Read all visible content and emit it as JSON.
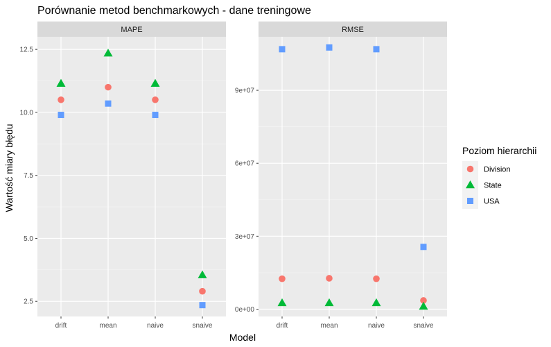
{
  "chart_data": {
    "type": "scatter",
    "title": "Porównanie metod benchmarkowych - dane treningowe",
    "xlabel": "Model",
    "ylabel": "Wartość miary błędu",
    "grid": true,
    "categories": [
      "drift",
      "mean",
      "naive",
      "snaive"
    ],
    "legend": {
      "title": "Poziom hierarchii",
      "placement": "right",
      "entries": [
        {
          "name": "Division",
          "shape": "circle",
          "color": "#F8766D"
        },
        {
          "name": "State",
          "shape": "triangle",
          "color": "#00BA38"
        },
        {
          "name": "USA",
          "shape": "square",
          "color": "#619CFF"
        }
      ]
    },
    "panels": [
      {
        "name": "MAPE",
        "ylim": [
          1.9,
          13.0
        ],
        "yticks": [
          2.5,
          5.0,
          7.5,
          10.0,
          12.5
        ],
        "ytick_labels": [
          "2.5",
          "5.0",
          "7.5",
          "10.0",
          "12.5"
        ],
        "series": [
          {
            "name": "Division",
            "values": [
              10.5,
              11.0,
              10.5,
              2.9
            ]
          },
          {
            "name": "State",
            "values": [
              11.15,
              12.35,
              11.15,
              3.55
            ]
          },
          {
            "name": "USA",
            "values": [
              9.9,
              10.35,
              9.9,
              2.35
            ]
          }
        ]
      },
      {
        "name": "RMSE",
        "ylim": [
          -3000000,
          112000000
        ],
        "yticks": [
          0,
          30000000,
          60000000,
          90000000
        ],
        "ytick_labels": [
          "0e+00",
          "3e+07",
          "6e+07",
          "9e+07"
        ],
        "series": [
          {
            "name": "Division",
            "values": [
              12500000,
              12700000,
              12500000,
              3600000
            ]
          },
          {
            "name": "State",
            "values": [
              2600000,
              2600000,
              2600000,
              1200000
            ]
          },
          {
            "name": "USA",
            "values": [
              106900000,
              107600000,
              106900000,
              25600000
            ]
          }
        ]
      }
    ]
  }
}
